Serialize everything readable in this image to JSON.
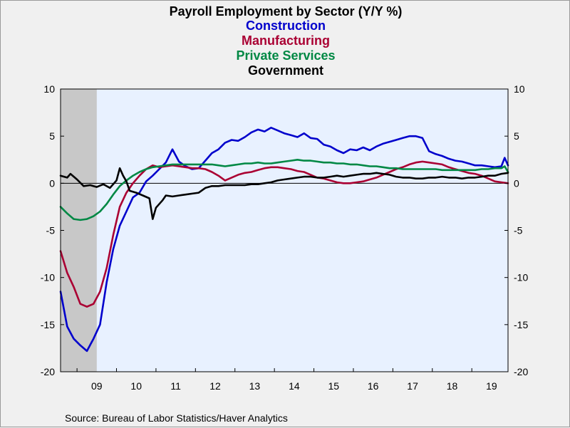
{
  "chart_data": {
    "type": "line",
    "title": "Payroll Employment by Sector (Y/Y %)",
    "source": "Source:  Bureau of Labor Statistics/Haver Analytics",
    "ylim": [
      -20,
      10
    ],
    "yticks": [
      10,
      5,
      0,
      -5,
      -10,
      -15,
      -20
    ],
    "xlim": [
      2008.583,
      2019.917
    ],
    "xticks": [
      {
        "label": "09",
        "value": 2009.5
      },
      {
        "label": "10",
        "value": 2010.5
      },
      {
        "label": "11",
        "value": 2011.5
      },
      {
        "label": "12",
        "value": 2012.5
      },
      {
        "label": "13",
        "value": 2013.5
      },
      {
        "label": "14",
        "value": 2014.5
      },
      {
        "label": "15",
        "value": 2015.5
      },
      {
        "label": "16",
        "value": 2016.5
      },
      {
        "label": "17",
        "value": 2017.5
      },
      {
        "label": "18",
        "value": 2018.5
      },
      {
        "label": "19",
        "value": 2019.5
      }
    ],
    "recession": [
      2008.583,
      2009.5
    ],
    "grid": false,
    "legend": "top-center",
    "series": [
      {
        "name": "Construction",
        "color": "#0000cc",
        "x": [
          2008.583,
          2008.75,
          2008.917,
          2009.083,
          2009.25,
          2009.417,
          2009.583,
          2009.75,
          2009.917,
          2010.083,
          2010.25,
          2010.417,
          2010.583,
          2010.75,
          2010.917,
          2011.083,
          2011.25,
          2011.417,
          2011.583,
          2011.75,
          2011.917,
          2012.083,
          2012.25,
          2012.417,
          2012.583,
          2012.75,
          2012.917,
          2013.083,
          2013.25,
          2013.417,
          2013.583,
          2013.75,
          2013.917,
          2014.083,
          2014.25,
          2014.417,
          2014.583,
          2014.75,
          2014.917,
          2015.083,
          2015.25,
          2015.417,
          2015.583,
          2015.75,
          2015.917,
          2016.083,
          2016.25,
          2016.417,
          2016.583,
          2016.75,
          2016.917,
          2017.083,
          2017.25,
          2017.417,
          2017.583,
          2017.75,
          2017.917,
          2018.083,
          2018.25,
          2018.417,
          2018.583,
          2018.75,
          2018.917,
          2019.083,
          2019.25,
          2019.417,
          2019.583,
          2019.75,
          2019.833,
          2019.917
        ],
        "values": [
          -11.5,
          -15.2,
          -16.5,
          -17.2,
          -17.8,
          -16.5,
          -15.0,
          -10.5,
          -7.0,
          -4.5,
          -3.0,
          -1.5,
          -1.0,
          0.2,
          0.8,
          1.5,
          2.2,
          3.6,
          2.3,
          1.8,
          1.5,
          1.6,
          2.4,
          3.2,
          3.6,
          4.3,
          4.6,
          4.5,
          4.9,
          5.4,
          5.7,
          5.5,
          5.9,
          5.6,
          5.3,
          5.1,
          4.9,
          5.3,
          4.8,
          4.7,
          4.1,
          3.9,
          3.5,
          3.2,
          3.6,
          3.5,
          3.8,
          3.5,
          3.9,
          4.2,
          4.4,
          4.6,
          4.8,
          5.0,
          5.0,
          4.8,
          3.4,
          3.1,
          2.9,
          2.6,
          2.4,
          2.3,
          2.1,
          1.9,
          1.9,
          1.8,
          1.7,
          1.8,
          2.7,
          1.9
        ]
      },
      {
        "name": "Manufacturing",
        "color": "#aa0033",
        "x": [
          2008.583,
          2008.75,
          2008.917,
          2009.083,
          2009.25,
          2009.417,
          2009.583,
          2009.75,
          2009.917,
          2010.083,
          2010.25,
          2010.417,
          2010.583,
          2010.75,
          2010.917,
          2011.083,
          2011.25,
          2011.417,
          2011.583,
          2011.75,
          2011.917,
          2012.083,
          2012.25,
          2012.417,
          2012.583,
          2012.75,
          2012.917,
          2013.083,
          2013.25,
          2013.417,
          2013.583,
          2013.75,
          2013.917,
          2014.083,
          2014.25,
          2014.417,
          2014.583,
          2014.75,
          2014.917,
          2015.083,
          2015.25,
          2015.417,
          2015.583,
          2015.75,
          2015.917,
          2016.083,
          2016.25,
          2016.417,
          2016.583,
          2016.75,
          2016.917,
          2017.083,
          2017.25,
          2017.417,
          2017.583,
          2017.75,
          2017.917,
          2018.083,
          2018.25,
          2018.417,
          2018.583,
          2018.75,
          2018.917,
          2019.083,
          2019.25,
          2019.417,
          2019.583,
          2019.75,
          2019.917
        ],
        "values": [
          -7.2,
          -9.5,
          -11.0,
          -12.8,
          -13.1,
          -12.8,
          -11.5,
          -9.0,
          -5.5,
          -2.5,
          -1.0,
          0.0,
          0.8,
          1.5,
          1.9,
          1.7,
          1.8,
          1.9,
          1.8,
          1.7,
          1.6,
          1.6,
          1.5,
          1.2,
          0.8,
          0.3,
          0.6,
          0.9,
          1.1,
          1.2,
          1.4,
          1.6,
          1.7,
          1.7,
          1.6,
          1.5,
          1.3,
          1.2,
          0.9,
          0.6,
          0.5,
          0.3,
          0.1,
          0.0,
          0.0,
          0.1,
          0.2,
          0.4,
          0.6,
          0.9,
          1.2,
          1.5,
          1.7,
          2.0,
          2.2,
          2.3,
          2.2,
          2.1,
          2.0,
          1.7,
          1.5,
          1.3,
          1.1,
          1.0,
          0.8,
          0.5,
          0.2,
          0.1,
          0.0
        ]
      },
      {
        "name": "Private Services",
        "color": "#008844",
        "x": [
          2008.583,
          2008.75,
          2008.917,
          2009.083,
          2009.25,
          2009.417,
          2009.583,
          2009.75,
          2009.917,
          2010.083,
          2010.25,
          2010.417,
          2010.583,
          2010.75,
          2010.917,
          2011.083,
          2011.25,
          2011.417,
          2011.583,
          2011.75,
          2011.917,
          2012.083,
          2012.25,
          2012.417,
          2012.583,
          2012.75,
          2012.917,
          2013.083,
          2013.25,
          2013.417,
          2013.583,
          2013.75,
          2013.917,
          2014.083,
          2014.25,
          2014.417,
          2014.583,
          2014.75,
          2014.917,
          2015.083,
          2015.25,
          2015.417,
          2015.583,
          2015.75,
          2015.917,
          2016.083,
          2016.25,
          2016.417,
          2016.583,
          2016.75,
          2016.917,
          2017.083,
          2017.25,
          2017.417,
          2017.583,
          2017.75,
          2017.917,
          2018.083,
          2018.25,
          2018.417,
          2018.583,
          2018.75,
          2018.917,
          2019.083,
          2019.25,
          2019.417,
          2019.583,
          2019.75,
          2019.833,
          2019.917
        ],
        "values": [
          -2.5,
          -3.2,
          -3.8,
          -3.9,
          -3.8,
          -3.5,
          -3.0,
          -2.2,
          -1.2,
          -0.3,
          0.3,
          0.8,
          1.2,
          1.5,
          1.7,
          1.8,
          1.9,
          2.0,
          2.0,
          2.0,
          2.0,
          2.0,
          2.0,
          2.0,
          1.9,
          1.8,
          1.9,
          2.0,
          2.1,
          2.1,
          2.2,
          2.1,
          2.1,
          2.2,
          2.3,
          2.4,
          2.5,
          2.4,
          2.4,
          2.3,
          2.2,
          2.2,
          2.1,
          2.1,
          2.0,
          2.0,
          1.9,
          1.8,
          1.8,
          1.7,
          1.6,
          1.6,
          1.5,
          1.5,
          1.5,
          1.5,
          1.5,
          1.5,
          1.4,
          1.4,
          1.4,
          1.4,
          1.4,
          1.4,
          1.5,
          1.5,
          1.6,
          1.6,
          1.8,
          1.2
        ]
      },
      {
        "name": "Government",
        "color": "#000000",
        "x": [
          2008.583,
          2008.75,
          2008.833,
          2009.0,
          2009.167,
          2009.333,
          2009.5,
          2009.667,
          2009.833,
          2010.0,
          2010.083,
          2010.167,
          2010.25,
          2010.333,
          2010.5,
          2010.667,
          2010.833,
          2010.917,
          2011.0,
          2011.167,
          2011.25,
          2011.417,
          2011.583,
          2011.75,
          2011.917,
          2012.083,
          2012.25,
          2012.417,
          2012.583,
          2012.75,
          2012.917,
          2013.083,
          2013.25,
          2013.417,
          2013.583,
          2013.75,
          2013.917,
          2014.083,
          2014.25,
          2014.417,
          2014.583,
          2014.75,
          2014.917,
          2015.083,
          2015.25,
          2015.417,
          2015.583,
          2015.75,
          2015.917,
          2016.083,
          2016.25,
          2016.417,
          2016.583,
          2016.75,
          2016.917,
          2017.083,
          2017.25,
          2017.417,
          2017.583,
          2017.75,
          2017.917,
          2018.083,
          2018.25,
          2018.417,
          2018.583,
          2018.75,
          2018.917,
          2019.083,
          2019.25,
          2019.417,
          2019.583,
          2019.75,
          2019.917
        ],
        "values": [
          0.8,
          0.6,
          1.0,
          0.4,
          -0.3,
          -0.2,
          -0.4,
          -0.1,
          -0.5,
          0.3,
          1.6,
          0.8,
          0.2,
          -0.8,
          -1.0,
          -1.3,
          -1.6,
          -3.8,
          -2.6,
          -1.8,
          -1.3,
          -1.4,
          -1.3,
          -1.2,
          -1.1,
          -1.0,
          -0.5,
          -0.3,
          -0.3,
          -0.2,
          -0.2,
          -0.2,
          -0.2,
          -0.1,
          -0.1,
          0.0,
          0.1,
          0.3,
          0.4,
          0.5,
          0.6,
          0.7,
          0.7,
          0.6,
          0.6,
          0.7,
          0.8,
          0.7,
          0.8,
          0.9,
          1.0,
          1.0,
          1.1,
          1.0,
          0.9,
          0.7,
          0.6,
          0.6,
          0.5,
          0.5,
          0.6,
          0.6,
          0.7,
          0.6,
          0.6,
          0.5,
          0.6,
          0.6,
          0.7,
          0.8,
          0.8,
          1.0,
          1.1
        ]
      }
    ]
  }
}
